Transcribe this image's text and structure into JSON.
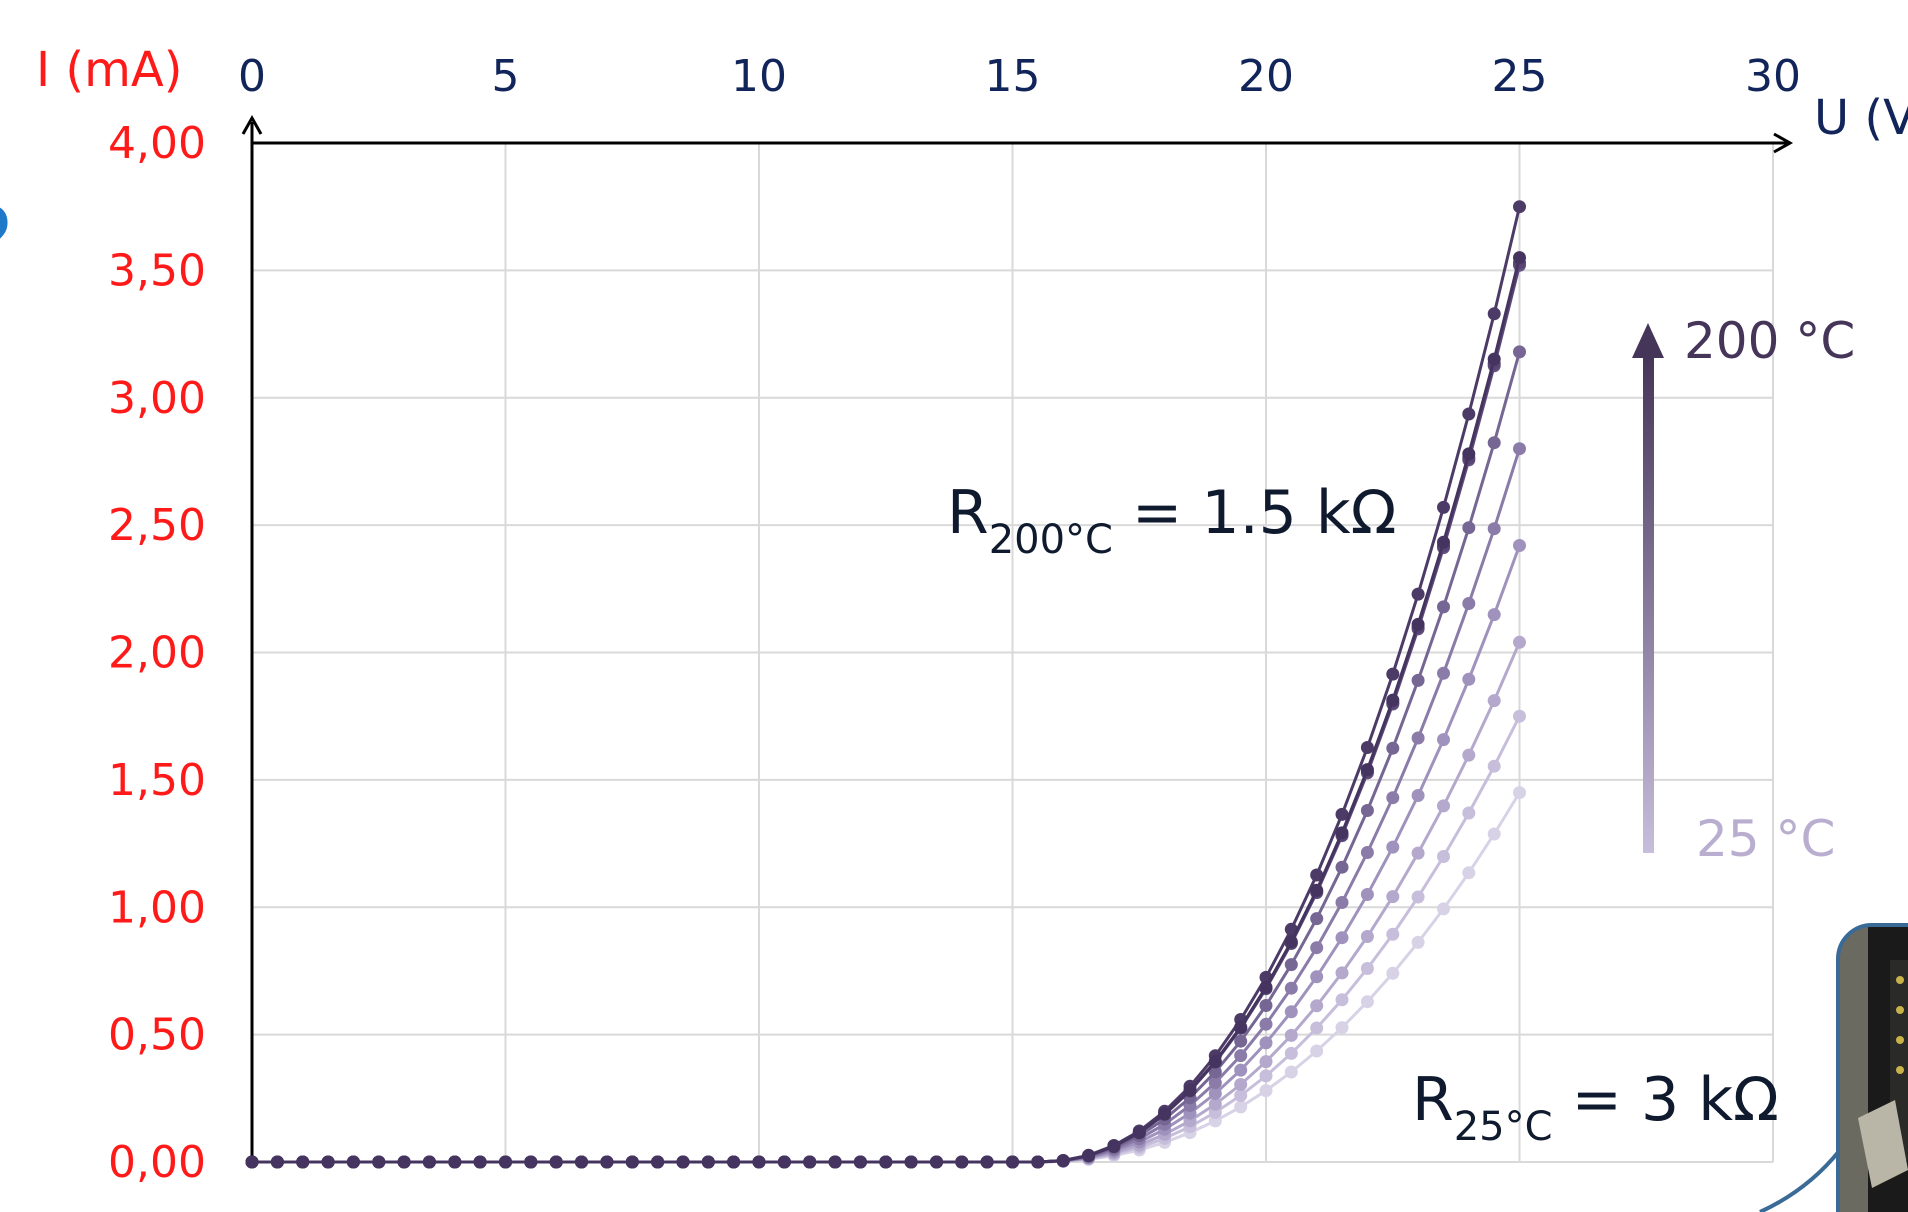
{
  "chart_data": {
    "type": "line",
    "ylabel": "I (mA)",
    "xlabel": "U (V)",
    "xlim": [
      0,
      30
    ],
    "ylim": [
      0,
      4
    ],
    "x_ticks": [
      "0",
      "5",
      "10",
      "15",
      "20",
      "25",
      "30"
    ],
    "y_ticks": [
      "0,00",
      "0,50",
      "1,00",
      "1,50",
      "2,00",
      "2,50",
      "3,00",
      "3,50",
      "4,00"
    ],
    "grid": true,
    "x_step": 0.5,
    "x_start": 0,
    "x_end": 25,
    "curve_shape": "exponential rise above about 15 V",
    "series_colors": [
      "#d8d2e6",
      "#c6bedb",
      "#b4a9cd",
      "#9f92bd",
      "#8a7ba9",
      "#766694",
      "#655381",
      "#584573",
      "#4d3b67",
      "#45345f"
    ],
    "series_end_values": [
      1.45,
      1.75,
      2.04,
      2.42,
      2.8,
      3.18,
      3.52,
      3.53,
      3.75,
      3.55
    ],
    "annotations": {
      "r_hot_main": "R",
      "r_hot_sub": "200°C",
      "r_hot_rest": " = 1.5 kΩ",
      "r_cold_main": "R",
      "r_cold_sub": "25°C",
      "r_cold_rest": " = 3 kΩ",
      "temp_high": "200 °C",
      "temp_low": "25 °C",
      "temp_arrow_colors": [
        "#453559",
        "#c7bedb"
      ]
    },
    "edge_glyph": "?",
    "photo_frame_color": "#3a6a96"
  }
}
